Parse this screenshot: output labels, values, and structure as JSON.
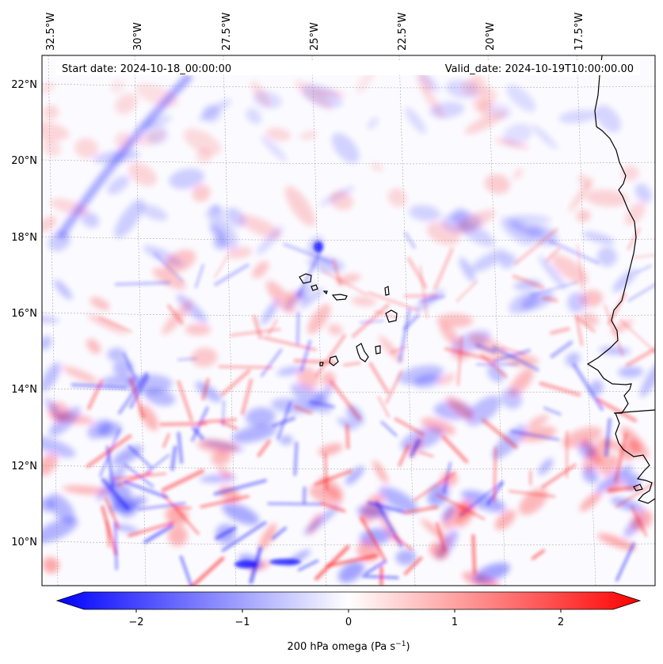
{
  "header": {
    "start_date": "Start date: 2024-10-18_00:00:00",
    "valid_date": "Valid_date: 2024-10-19T10:00:00.00"
  },
  "map": {
    "lon_labels": [
      "32.5°W",
      "30°W",
      "27.5°W",
      "25°W",
      "22.5°W",
      "20°W",
      "17.5°W"
    ],
    "lat_labels": [
      "22°N",
      "20°N",
      "18°N",
      "16°N",
      "14°N",
      "12°N",
      "10°N"
    ],
    "lon_range": [
      -32.5,
      -15.0
    ],
    "lat_range": [
      9.0,
      22.8
    ],
    "gridlines": true,
    "colormap": "bwr",
    "negative_color": "#0000ff",
    "positive_color": "#ff0000"
  },
  "colorbar": {
    "ticks": [
      "−2",
      "−1",
      "0",
      "1",
      "2"
    ],
    "label": "200 hPa omega (Pa s",
    "label_sup": "−1",
    "label_end": ")",
    "range": [
      -2.75,
      2.75
    ]
  }
}
